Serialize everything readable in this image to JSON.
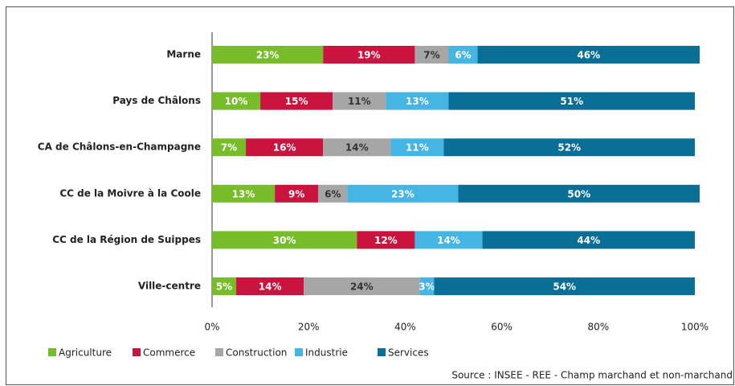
{
  "chart_data": {
    "type": "stacked_bar_horizontal",
    "categories": [
      "Marne",
      "Pays de Châlons",
      "CA de Châlons-en-Champagne",
      "CC de la Moivre à la Coole",
      "CC de la Région de Suippes",
      "Ville-centre"
    ],
    "series": [
      {
        "name": "Agriculture",
        "color": "#77bc2a",
        "label_color": "#ffffff",
        "values": [
          23,
          10,
          7,
          13,
          30,
          5
        ],
        "value_labels": [
          "23%",
          "10%",
          "7%",
          "13%",
          "30%",
          "5%"
        ]
      },
      {
        "name": "Commerce",
        "color": "#c8143f",
        "label_color": "#ffffff",
        "values": [
          19,
          15,
          16,
          9,
          12,
          14
        ],
        "value_labels": [
          "19%",
          "15%",
          "16%",
          "9%",
          "12%",
          "14%"
        ]
      },
      {
        "name": "Construction",
        "color": "#a6a6a6",
        "label_color": "#333333",
        "values": [
          7,
          11,
          14,
          6,
          0,
          24
        ],
        "value_labels": [
          "7%",
          "11%",
          "14%",
          "6%",
          null,
          "24%"
        ]
      },
      {
        "name": "Industrie",
        "color": "#45b5e3",
        "label_color": "#ffffff",
        "values": [
          6,
          13,
          11,
          23,
          14,
          3
        ],
        "value_labels": [
          "6%",
          "13%",
          "11%",
          "23%",
          "14%",
          "3%"
        ]
      },
      {
        "name": "Services",
        "color": "#0a6e96",
        "label_color": "#ffffff",
        "values": [
          46,
          51,
          52,
          50,
          44,
          54
        ],
        "value_labels": [
          "46%",
          "51%",
          "52%",
          "50%",
          "44%",
          "54%"
        ]
      }
    ],
    "xlim": [
      0,
      100
    ],
    "xticks": [
      {
        "value": 0,
        "label": "0%"
      },
      {
        "value": 20,
        "label": "20%"
      },
      {
        "value": 40,
        "label": "40%"
      },
      {
        "value": 60,
        "label": "60%"
      },
      {
        "value": 80,
        "label": "80%"
      },
      {
        "value": 100,
        "label": "100%"
      }
    ],
    "legend": "bottom-left",
    "source": "Source : INSEE - REE - Champ marchand et non-marchand"
  }
}
